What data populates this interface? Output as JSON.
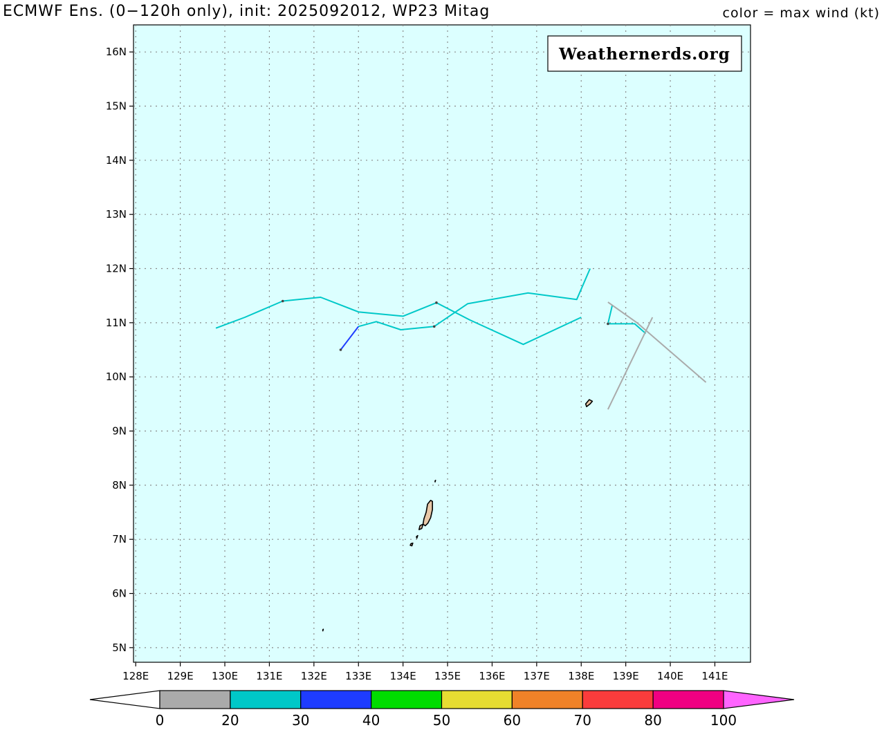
{
  "header": {
    "title": "ECMWF Ens. (0−120h only), init: 2025092012, WP23 Mitag",
    "color_legend": "color = max wind (kt)"
  },
  "watermark": "Weathernerds.org",
  "axes": {
    "lon_ticks": [
      128,
      129,
      130,
      131,
      132,
      133,
      134,
      135,
      136,
      137,
      138,
      139,
      140,
      141
    ],
    "lon_labels": [
      "128E",
      "129E",
      "130E",
      "131E",
      "132E",
      "133E",
      "134E",
      "135E",
      "136E",
      "137E",
      "138E",
      "139E",
      "140E",
      "141E"
    ],
    "lat_ticks": [
      5,
      6,
      7,
      8,
      9,
      10,
      11,
      12,
      13,
      14,
      15,
      16
    ],
    "lat_labels": [
      "5N",
      "6N",
      "7N",
      "8N",
      "9N",
      "10N",
      "11N",
      "12N",
      "13N",
      "14N",
      "15N",
      "16N"
    ],
    "lon_range": [
      127.95,
      141.8
    ],
    "lat_range": [
      4.73,
      16.5
    ]
  },
  "colors": {
    "ocean": "#dcffff",
    "grid": "#888888",
    "land_fill": "#e8c8a8"
  },
  "colorbar": {
    "labels": [
      "0",
      "20",
      "30",
      "40",
      "50",
      "60",
      "70",
      "80",
      "100"
    ],
    "bins": [
      {
        "color": "#aaaaaa"
      },
      {
        "color": "#00c8c8"
      },
      {
        "color": "#1e3cff"
      },
      {
        "color": "#00dc00"
      },
      {
        "color": "#e6dc32"
      },
      {
        "color": "#f08228"
      },
      {
        "color": "#fa3c3c"
      },
      {
        "color": "#f00082"
      }
    ],
    "under_color": "#ffffff",
    "over_color": "#ff64ff"
  },
  "tracks": [
    {
      "color": "#00c8c8",
      "points": [
        [
          129.8,
          10.9
        ],
        [
          130.45,
          11.1
        ],
        [
          131.3,
          11.4
        ],
        [
          132.15,
          11.47
        ],
        [
          133.0,
          11.2
        ],
        [
          134.0,
          11.12
        ],
        [
          134.75,
          11.37
        ],
        [
          135.5,
          11.05
        ],
        [
          136.7,
          10.6
        ],
        [
          138.0,
          11.1
        ]
      ],
      "markers": [
        [
          131.3,
          11.4
        ],
        [
          134.75,
          11.37
        ]
      ]
    },
    {
      "color": "#00c8c8",
      "points": [
        [
          133.0,
          10.93
        ],
        [
          133.4,
          11.02
        ],
        [
          133.95,
          10.87
        ],
        [
          134.7,
          10.93
        ],
        [
          135.45,
          11.35
        ],
        [
          136.8,
          11.55
        ],
        [
          137.9,
          11.43
        ],
        [
          138.2,
          12.0
        ]
      ],
      "markers": [
        [
          134.7,
          10.93
        ]
      ]
    },
    {
      "color": "#1e3cff",
      "points": [
        [
          132.6,
          10.5
        ],
        [
          133.0,
          10.93
        ]
      ],
      "markers": [
        [
          132.6,
          10.5
        ]
      ]
    },
    {
      "color": "#00c8c8",
      "points": [
        [
          138.7,
          11.33
        ],
        [
          138.6,
          10.98
        ],
        [
          139.2,
          10.98
        ],
        [
          139.45,
          10.8
        ]
      ],
      "markers": [
        [
          138.6,
          10.98
        ]
      ]
    },
    {
      "color": "#aaaaaa",
      "points": [
        [
          138.6,
          11.38
        ],
        [
          139.25,
          11.0
        ],
        [
          140.8,
          9.9
        ]
      ],
      "markers": []
    },
    {
      "color": "#aaaaaa",
      "points": [
        [
          138.6,
          9.4
        ],
        [
          139.6,
          11.1
        ]
      ],
      "markers": []
    }
  ],
  "islands": [
    {
      "points": [
        [
          134.55,
          7.65
        ],
        [
          134.62,
          7.72
        ],
        [
          134.66,
          7.7
        ],
        [
          134.66,
          7.55
        ],
        [
          134.62,
          7.4
        ],
        [
          134.56,
          7.3
        ],
        [
          134.5,
          7.25
        ],
        [
          134.45,
          7.28
        ],
        [
          134.47,
          7.38
        ],
        [
          134.52,
          7.5
        ]
      ]
    },
    {
      "points": [
        [
          134.38,
          7.25
        ],
        [
          134.45,
          7.28
        ],
        [
          134.42,
          7.2
        ],
        [
          134.36,
          7.18
        ]
      ]
    },
    {
      "points": [
        [
          134.3,
          7.05
        ],
        [
          134.33,
          7.07
        ],
        [
          134.31,
          7.02
        ]
      ]
    },
    {
      "points": [
        [
          134.18,
          6.92
        ],
        [
          134.22,
          6.93
        ],
        [
          134.2,
          6.88
        ],
        [
          134.16,
          6.89
        ]
      ]
    },
    {
      "points": [
        [
          138.1,
          9.5
        ],
        [
          138.18,
          9.58
        ],
        [
          138.25,
          9.55
        ],
        [
          138.2,
          9.5
        ],
        [
          138.12,
          9.45
        ]
      ]
    },
    {
      "points": [
        [
          134.72,
          8.08
        ],
        [
          134.73,
          8.09
        ],
        [
          134.72,
          8.06
        ]
      ]
    },
    {
      "points": [
        [
          132.2,
          5.33
        ],
        [
          132.21,
          5.34
        ],
        [
          132.2,
          5.31
        ]
      ]
    }
  ]
}
